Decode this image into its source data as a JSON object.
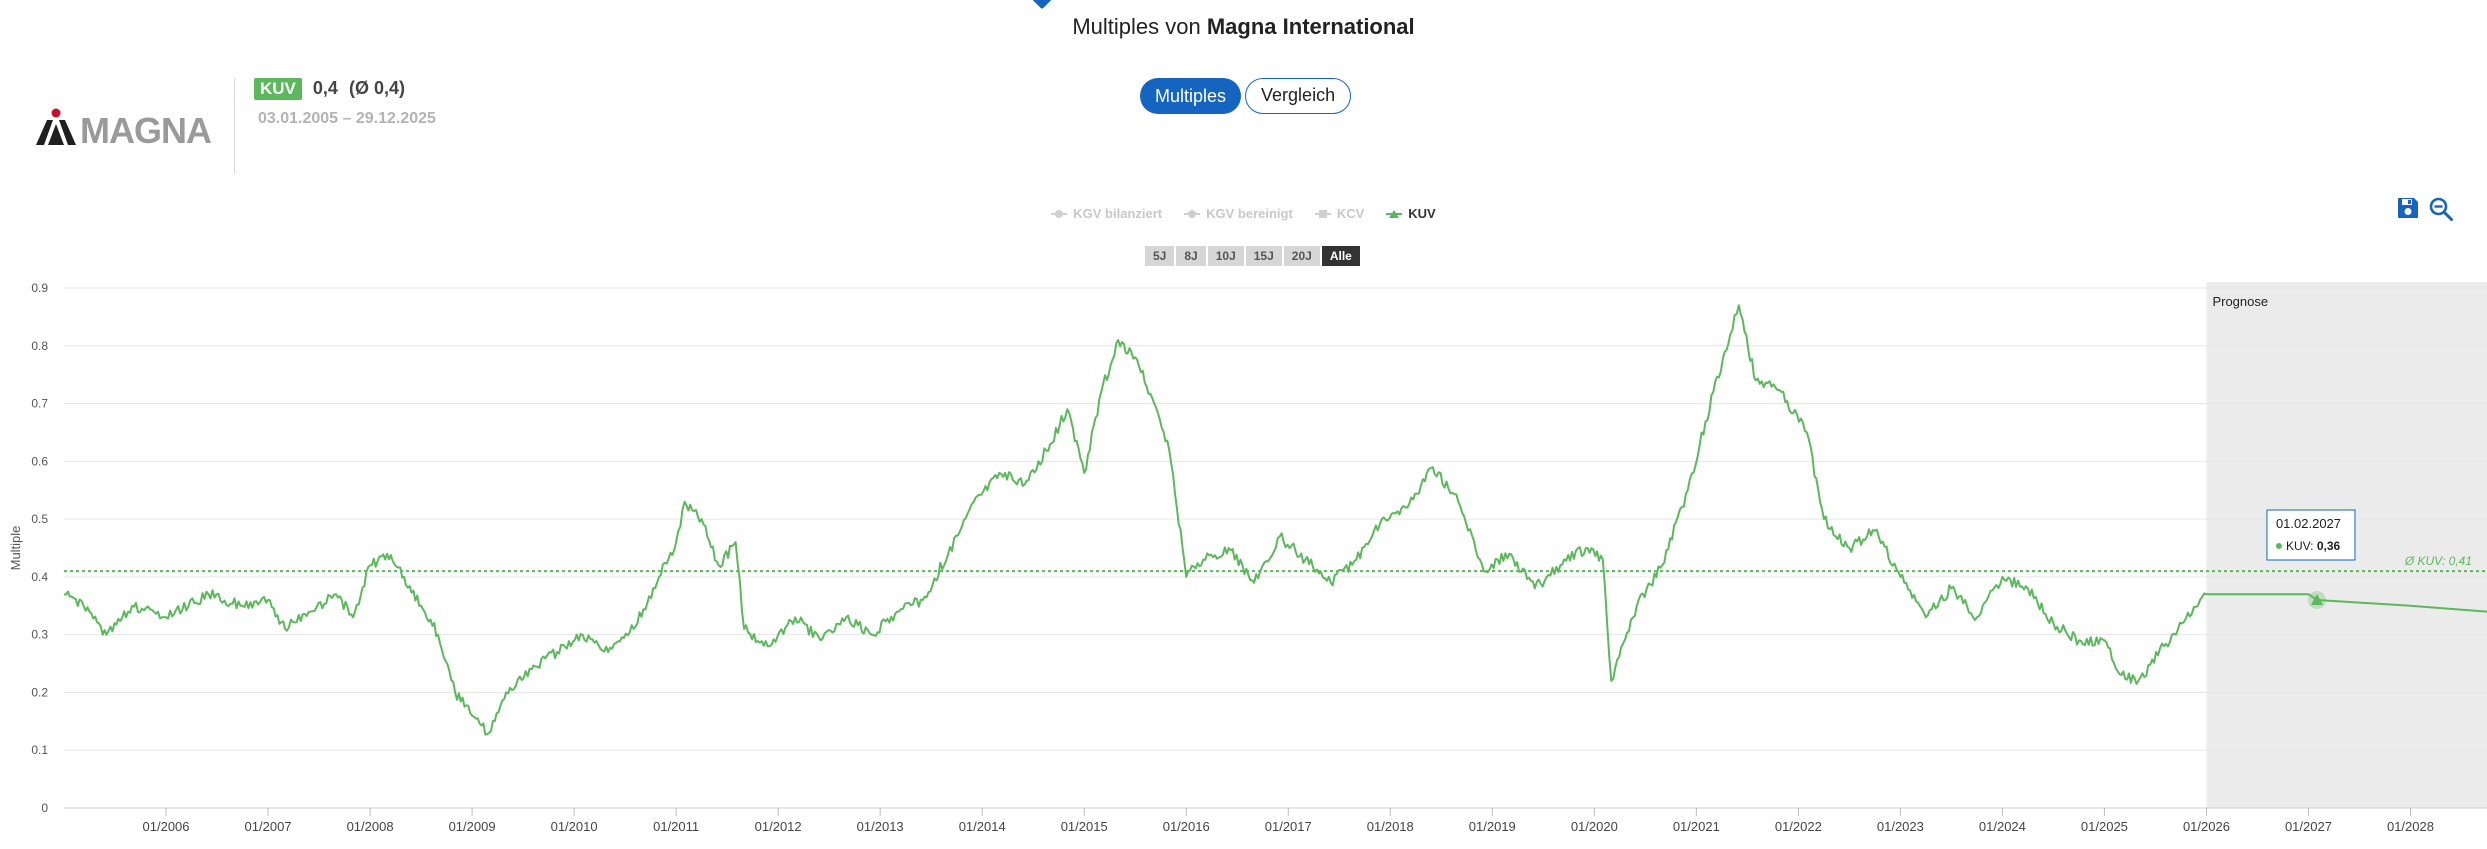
{
  "header": {
    "title_prefix": "Multiples von",
    "company": "Magna International"
  },
  "logo": {
    "text": "MAGNA"
  },
  "kpi": {
    "badge": "KUV",
    "value": "0,4",
    "average": "(Ø 0,4)",
    "daterange": "03.01.2005 – 29.12.2025"
  },
  "tabs": [
    {
      "label": "Multiples",
      "active": true
    },
    {
      "label": "Vergleich",
      "active": false
    }
  ],
  "legend": [
    {
      "label": "KGV bilanziert",
      "symbol": "circle",
      "active": false
    },
    {
      "label": "KGV bereinigt",
      "symbol": "circle",
      "active": false
    },
    {
      "label": "KCV",
      "symbol": "square",
      "active": false
    },
    {
      "label": "KUV",
      "symbol": "triangle",
      "active": true
    }
  ],
  "ranges": [
    {
      "label": "5J",
      "active": false
    },
    {
      "label": "8J",
      "active": false
    },
    {
      "label": "10J",
      "active": false
    },
    {
      "label": "15J",
      "active": false
    },
    {
      "label": "20J",
      "active": false
    },
    {
      "label": "Alle",
      "active": true
    }
  ],
  "colors": {
    "series": "#5cb85c",
    "accent": "#1565c0",
    "forecast_band": "#ebebeb",
    "grid": "#e6e6e6"
  },
  "icons": {
    "save": "floppy-disk-icon",
    "zoom": "zoom-out-icon"
  },
  "chart_data": {
    "type": "line",
    "ylabel": "Multiple",
    "ylim": [
      0,
      0.9
    ],
    "yticks": [
      "0",
      "0.1",
      "0.2",
      "0.3",
      "0.4",
      "0.5",
      "0.6",
      "0.7",
      "0.8",
      "0.9"
    ],
    "xlim": [
      "2005-01",
      "2028-10"
    ],
    "xticks": [
      "01/2006",
      "01/2007",
      "01/2008",
      "01/2009",
      "01/2010",
      "01/2011",
      "01/2012",
      "01/2013",
      "01/2014",
      "01/2015",
      "01/2016",
      "01/2017",
      "01/2018",
      "01/2019",
      "01/2020",
      "01/2021",
      "01/2022",
      "01/2023",
      "01/2024",
      "01/2025",
      "01/2026",
      "01/2027",
      "01/2028"
    ],
    "forecast": {
      "label": "Prognose",
      "start": "2026-01"
    },
    "average": {
      "label": "Ø KUV: 0,41",
      "value": 0.41
    },
    "tooltip": {
      "date": "01.02.2027",
      "series": "KUV",
      "value": "0,36",
      "x": "2027-02",
      "y": 0.36
    },
    "series": [
      {
        "name": "KUV",
        "points": [
          [
            "2005-01",
            0.37
          ],
          [
            "2005-04",
            0.34
          ],
          [
            "2005-06",
            0.3
          ],
          [
            "2005-09",
            0.35
          ],
          [
            "2006-01",
            0.33
          ],
          [
            "2006-06",
            0.37
          ],
          [
            "2006-10",
            0.35
          ],
          [
            "2007-01",
            0.36
          ],
          [
            "2007-03",
            0.31
          ],
          [
            "2007-06",
            0.34
          ],
          [
            "2007-09",
            0.37
          ],
          [
            "2007-11",
            0.33
          ],
          [
            "2008-01",
            0.42
          ],
          [
            "2008-03",
            0.44
          ],
          [
            "2008-05",
            0.4
          ],
          [
            "2008-07",
            0.35
          ],
          [
            "2008-09",
            0.3
          ],
          [
            "2008-11",
            0.2
          ],
          [
            "2009-01",
            0.16
          ],
          [
            "2009-03",
            0.13
          ],
          [
            "2009-05",
            0.2
          ],
          [
            "2009-08",
            0.24
          ],
          [
            "2009-11",
            0.27
          ],
          [
            "2010-02",
            0.3
          ],
          [
            "2010-05",
            0.27
          ],
          [
            "2010-08",
            0.31
          ],
          [
            "2010-11",
            0.4
          ],
          [
            "2011-01",
            0.46
          ],
          [
            "2011-02",
            0.53
          ],
          [
            "2011-04",
            0.5
          ],
          [
            "2011-06",
            0.42
          ],
          [
            "2011-08",
            0.46
          ],
          [
            "2011-09",
            0.31
          ],
          [
            "2011-12",
            0.28
          ],
          [
            "2012-03",
            0.33
          ],
          [
            "2012-06",
            0.29
          ],
          [
            "2012-09",
            0.33
          ],
          [
            "2012-12",
            0.3
          ],
          [
            "2013-03",
            0.34
          ],
          [
            "2013-06",
            0.36
          ],
          [
            "2013-09",
            0.44
          ],
          [
            "2013-12",
            0.53
          ],
          [
            "2014-03",
            0.58
          ],
          [
            "2014-06",
            0.56
          ],
          [
            "2014-09",
            0.63
          ],
          [
            "2014-11",
            0.69
          ],
          [
            "2015-01",
            0.58
          ],
          [
            "2015-03",
            0.72
          ],
          [
            "2015-05",
            0.81
          ],
          [
            "2015-07",
            0.78
          ],
          [
            "2015-09",
            0.71
          ],
          [
            "2015-11",
            0.62
          ],
          [
            "2016-01",
            0.4
          ],
          [
            "2016-03",
            0.43
          ],
          [
            "2016-06",
            0.45
          ],
          [
            "2016-09",
            0.39
          ],
          [
            "2016-12",
            0.47
          ],
          [
            "2017-03",
            0.43
          ],
          [
            "2017-06",
            0.39
          ],
          [
            "2017-09",
            0.43
          ],
          [
            "2017-12",
            0.5
          ],
          [
            "2018-03",
            0.52
          ],
          [
            "2018-06",
            0.59
          ],
          [
            "2018-09",
            0.53
          ],
          [
            "2018-12",
            0.41
          ],
          [
            "2019-03",
            0.44
          ],
          [
            "2019-06",
            0.38
          ],
          [
            "2019-09",
            0.42
          ],
          [
            "2019-12",
            0.45
          ],
          [
            "2020-02",
            0.43
          ],
          [
            "2020-03",
            0.22
          ],
          [
            "2020-06",
            0.35
          ],
          [
            "2020-09",
            0.42
          ],
          [
            "2020-12",
            0.55
          ],
          [
            "2021-03",
            0.72
          ],
          [
            "2021-05",
            0.82
          ],
          [
            "2021-06",
            0.87
          ],
          [
            "2021-08",
            0.74
          ],
          [
            "2021-11",
            0.72
          ],
          [
            "2022-02",
            0.65
          ],
          [
            "2022-04",
            0.5
          ],
          [
            "2022-07",
            0.45
          ],
          [
            "2022-10",
            0.48
          ],
          [
            "2023-01",
            0.4
          ],
          [
            "2023-04",
            0.33
          ],
          [
            "2023-07",
            0.38
          ],
          [
            "2023-10",
            0.33
          ],
          [
            "2024-01",
            0.4
          ],
          [
            "2024-04",
            0.38
          ],
          [
            "2024-07",
            0.32
          ],
          [
            "2024-10",
            0.29
          ],
          [
            "2025-01",
            0.29
          ],
          [
            "2025-03",
            0.23
          ],
          [
            "2025-05",
            0.22
          ],
          [
            "2025-08",
            0.28
          ],
          [
            "2025-12",
            0.35
          ],
          [
            "2026-01",
            0.37
          ],
          [
            "2027-01",
            0.37
          ],
          [
            "2027-02",
            0.36
          ],
          [
            "2028-01",
            0.35
          ],
          [
            "2028-10",
            0.34
          ]
        ]
      }
    ]
  }
}
